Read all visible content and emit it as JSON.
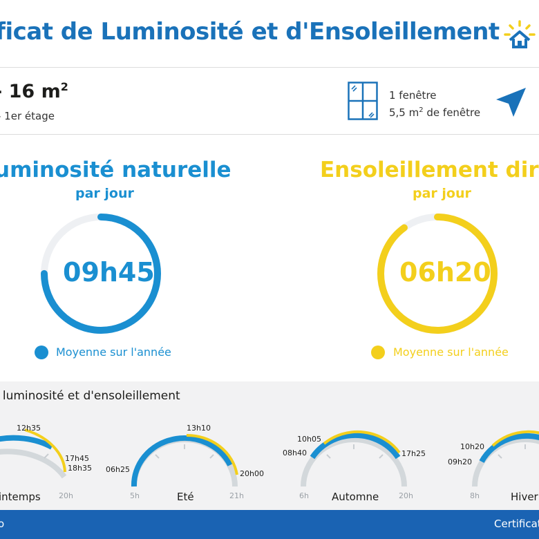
{
  "header": {
    "title": "ificat de Luminosité et d'Ensoleillement"
  },
  "property": {
    "area": "- 16 m",
    "area_sup": "2",
    "floor": "- 1er étage",
    "windows_count": "1 fenêtre",
    "window_area": "5,5 m",
    "window_area_sup": "2",
    "window_area_suffix": " de fenêtre"
  },
  "luminosity": {
    "title": "uminosité naturelle",
    "subtitle": "par jour",
    "value": "09h45",
    "legend": "Moyenne sur l'année",
    "color": "#1a8fd1",
    "fraction": 0.75
  },
  "sunshine": {
    "title": "Ensoleillement direc",
    "subtitle": "par jour",
    "value": "06h20",
    "legend": "Moyenne sur l'année",
    "color": "#f3cf1c",
    "fraction": 0.9
  },
  "seasons_section": {
    "title": "e luminosité et d'ensoleillement"
  },
  "seasons": [
    {
      "name": "intemps",
      "start": "",
      "end": "20h",
      "labels": [
        "12h35",
        "17h45",
        "18h35"
      ]
    },
    {
      "name": "Eté",
      "start": "5h",
      "end": "21h",
      "labels": [
        "06h25",
        "13h10",
        "20h00"
      ]
    },
    {
      "name": "Automne",
      "start": "6h",
      "end": "20h",
      "labels": [
        "08h40",
        "10h05",
        "17h25"
      ]
    },
    {
      "name": "Hiver",
      "start": "8h",
      "end": "",
      "labels": [
        "09h20",
        "10h20"
      ]
    }
  ],
  "footer": {
    "left": "o",
    "right": "Certificat"
  },
  "colors": {
    "blue": "#1a8fd1",
    "yellow": "#f3cf1c",
    "footer": "#1a63b3",
    "track": "#d3d8db"
  },
  "icons": [
    "sun-house-logo-icon",
    "window-icon",
    "navigation-arrow-icon"
  ]
}
